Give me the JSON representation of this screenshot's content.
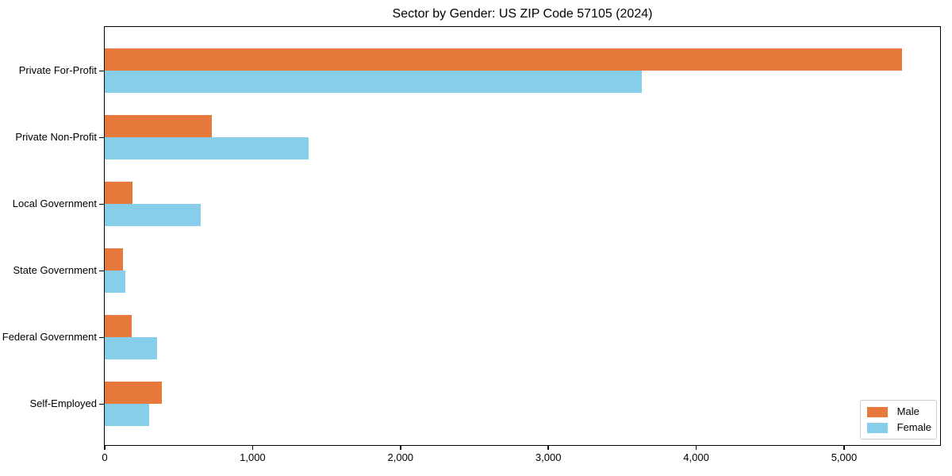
{
  "figure": {
    "background_color": "#ffffff",
    "text_color": "#000000"
  },
  "chart_data": {
    "type": "bar",
    "orientation": "horizontal",
    "title": "Sector by Gender: US ZIP Code 57105 (2024)",
    "categories": [
      "Private For-Profit",
      "Private Non-Profit",
      "Local Government",
      "State Government",
      "Federal Government",
      "Self-Employed"
    ],
    "series": [
      {
        "name": "Male",
        "color": "#e8793d",
        "values": [
          5390,
          725,
          190,
          125,
          180,
          385
        ]
      },
      {
        "name": "Female",
        "color": "#87ceeb",
        "values": [
          3630,
          1380,
          650,
          140,
          355,
          300
        ]
      }
    ],
    "xlim": [
      0,
      5660
    ],
    "xticks": [
      0,
      1000,
      2000,
      3000,
      4000,
      5000
    ],
    "xtick_labels": [
      "0",
      "1,000",
      "2,000",
      "3,000",
      "4,000",
      "5,000"
    ],
    "xlabel": "",
    "ylabel": "",
    "grid": false,
    "legend": {
      "position": "lower right",
      "entries": [
        {
          "label": "Male",
          "color": "#e8793d"
        },
        {
          "label": "Female",
          "color": "#87ceeb"
        }
      ]
    }
  }
}
